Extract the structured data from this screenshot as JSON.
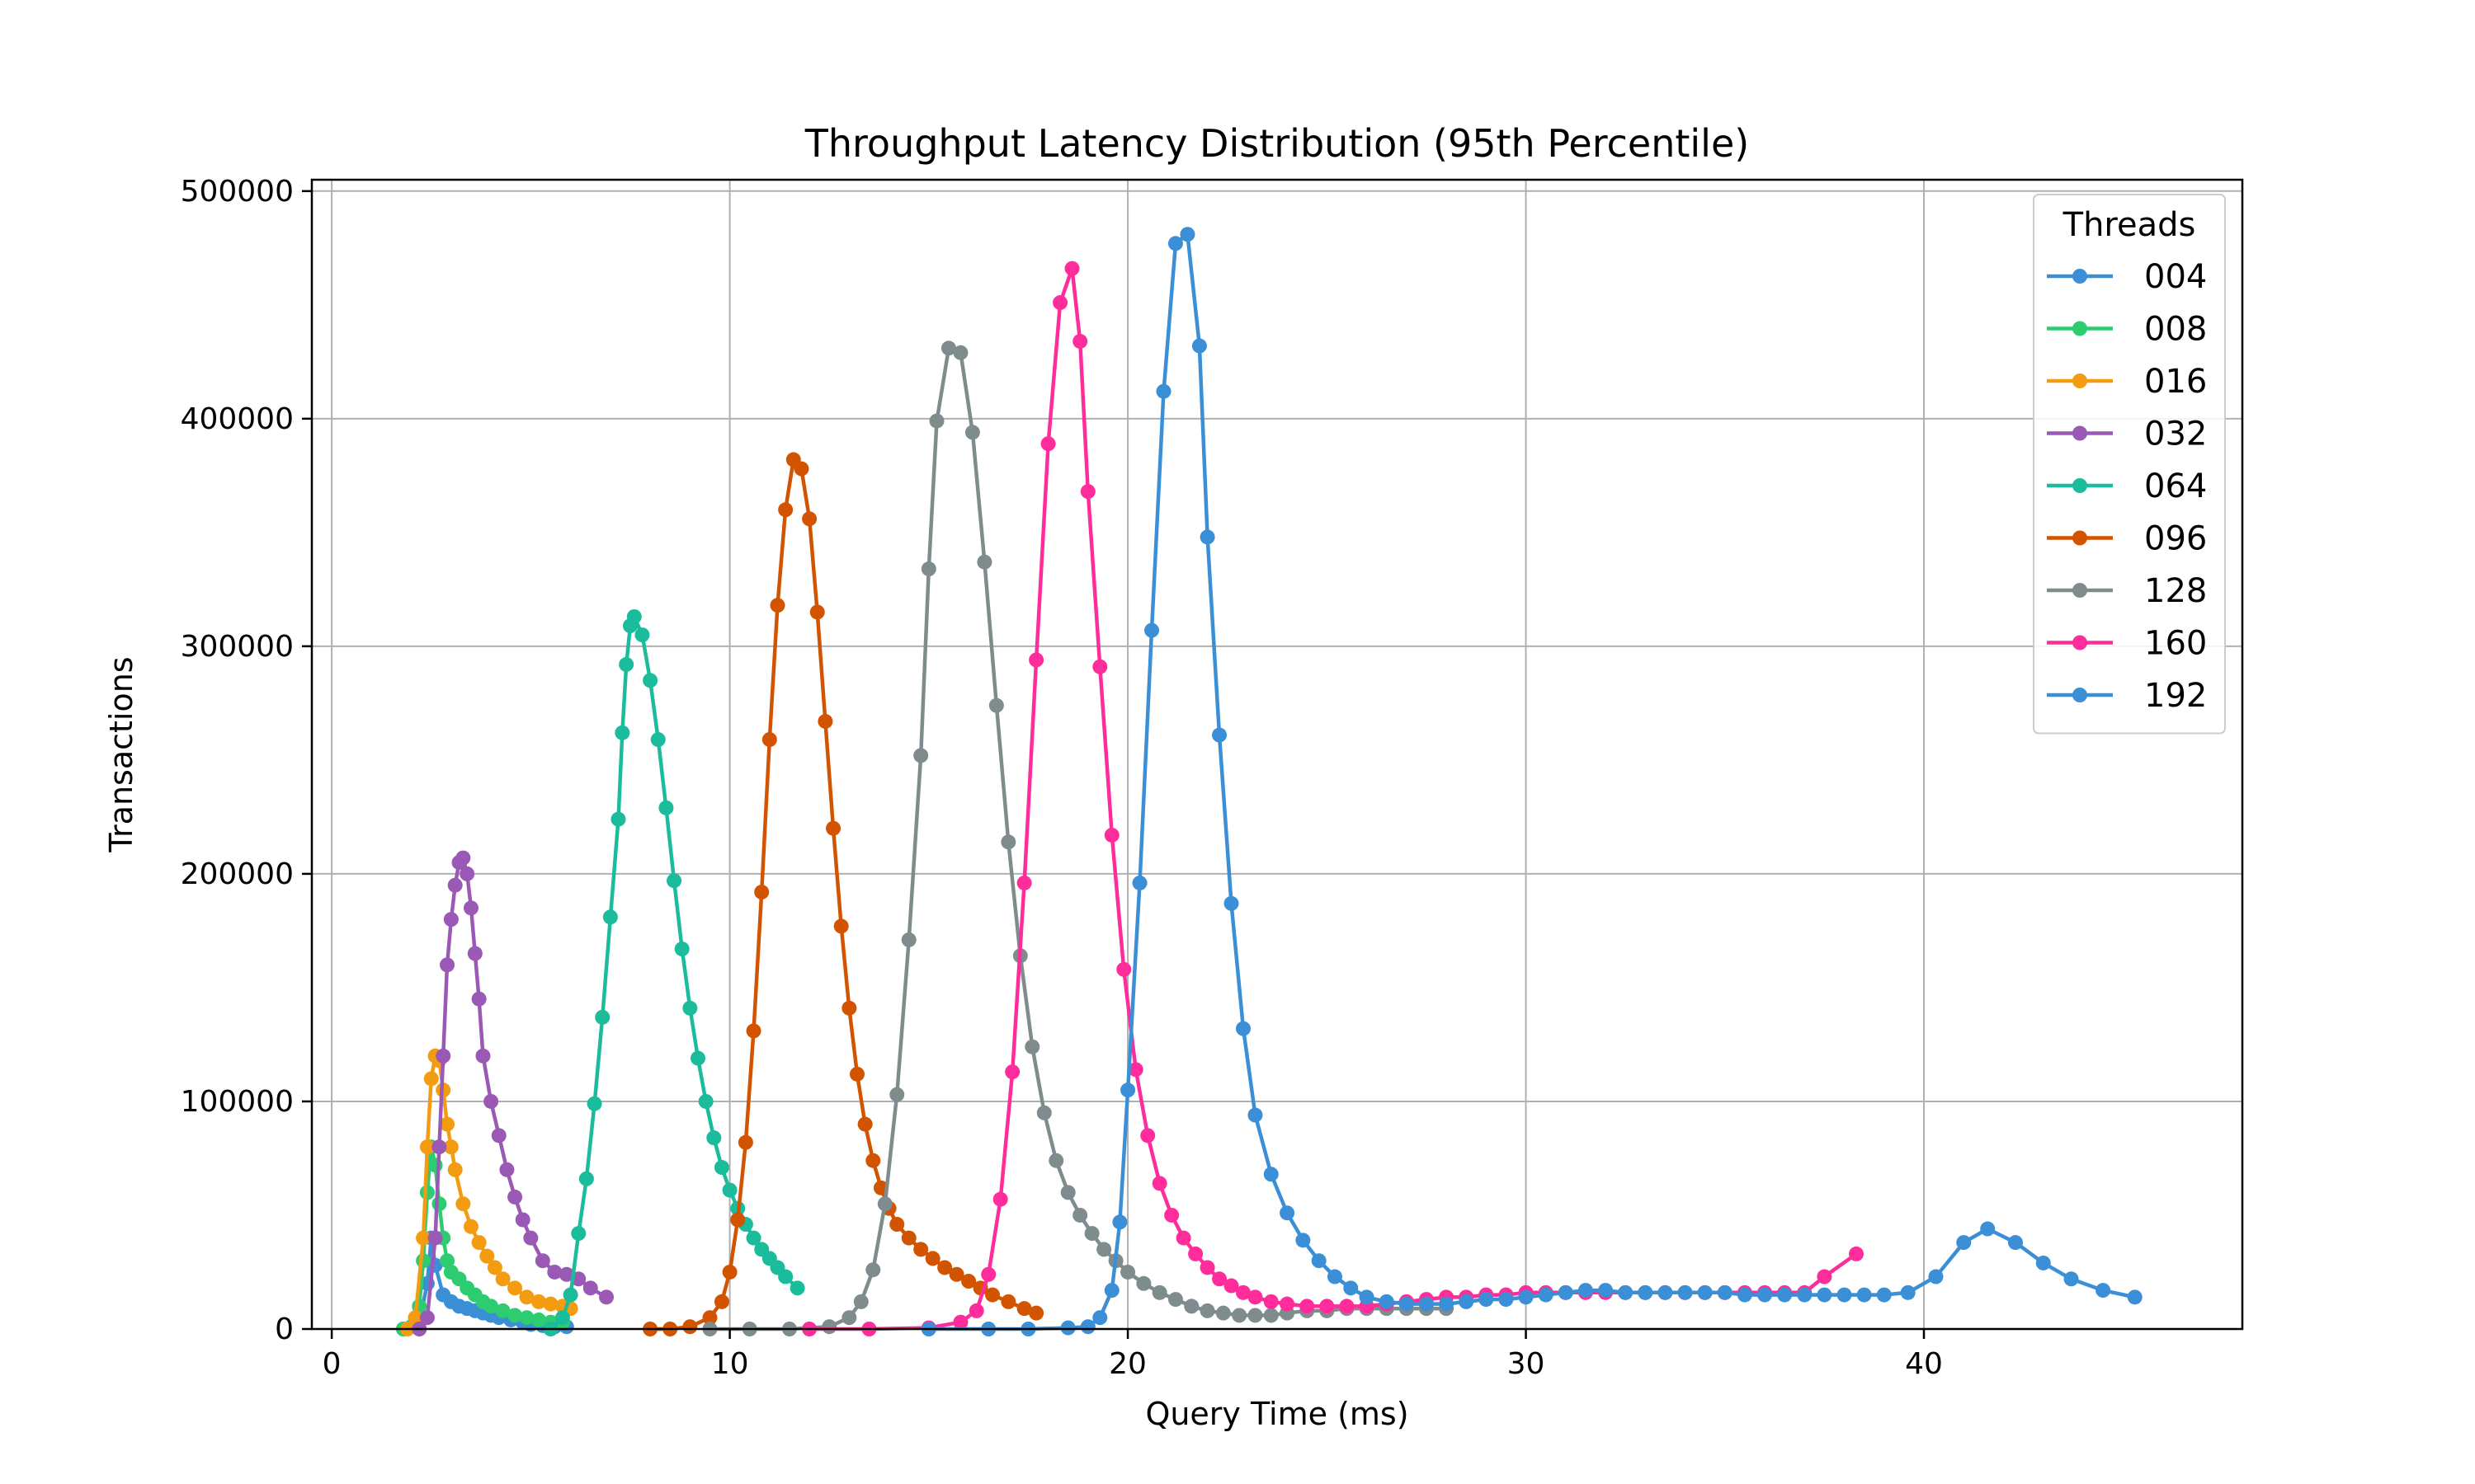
{
  "chart_data": {
    "type": "line",
    "title": "Throughput Latency Distribution (95th Percentile)",
    "xlabel": "Query Time (ms)",
    "ylabel": "Transactions",
    "xlim": [
      -0.5,
      48
    ],
    "ylim": [
      0,
      505000
    ],
    "xticks": [
      0,
      10,
      20,
      30,
      40
    ],
    "yticks": [
      0,
      100000,
      200000,
      300000,
      400000,
      500000
    ],
    "xtick_labels": [
      "0",
      "10",
      "20",
      "30",
      "40"
    ],
    "ytick_labels": [
      "0",
      "100000",
      "200000",
      "300000",
      "400000",
      "500000"
    ],
    "grid": true,
    "legend": {
      "title": "Threads",
      "placement": "top-right"
    },
    "series": [
      {
        "name": "004",
        "color": "#3a8fd6",
        "x": [
          1.8,
          2.0,
          2.2,
          2.4,
          2.5,
          2.6,
          2.8,
          3.0,
          3.2,
          3.4,
          3.6,
          3.8,
          4.0,
          4.2,
          4.5,
          4.8,
          5.0,
          5.3,
          5.6,
          5.9
        ],
        "y": [
          0,
          1000,
          3000,
          20000,
          40000,
          28000,
          15000,
          12000,
          10000,
          9000,
          8000,
          7000,
          6000,
          5000,
          4000,
          3000,
          2000,
          1500,
          1000,
          1000
        ]
      },
      {
        "name": "008",
        "color": "#2ecc71",
        "x": [
          1.8,
          2.0,
          2.2,
          2.3,
          2.4,
          2.5,
          2.6,
          2.7,
          2.8,
          2.9,
          3.0,
          3.2,
          3.4,
          3.6,
          3.8,
          4.0,
          4.3,
          4.6,
          4.9,
          5.2,
          5.5,
          5.8
        ],
        "y": [
          0,
          1000,
          10000,
          30000,
          60000,
          80000,
          72000,
          55000,
          40000,
          30000,
          25000,
          22000,
          18000,
          15000,
          12000,
          10000,
          8000,
          6000,
          5000,
          4000,
          3000,
          3000
        ]
      },
      {
        "name": "016",
        "color": "#f39c12",
        "x": [
          1.9,
          2.1,
          2.3,
          2.4,
          2.5,
          2.6,
          2.7,
          2.8,
          2.9,
          3.0,
          3.1,
          3.3,
          3.5,
          3.7,
          3.9,
          4.1,
          4.3,
          4.6,
          4.9,
          5.2,
          5.5,
          5.8,
          6.0
        ],
        "y": [
          0,
          5000,
          40000,
          80000,
          110000,
          120000,
          118000,
          105000,
          90000,
          80000,
          70000,
          55000,
          45000,
          38000,
          32000,
          27000,
          22000,
          18000,
          14000,
          12000,
          11000,
          10000,
          9000
        ]
      },
      {
        "name": "032",
        "color": "#9b59b6",
        "x": [
          2.2,
          2.4,
          2.6,
          2.7,
          2.8,
          2.9,
          3.0,
          3.1,
          3.2,
          3.3,
          3.4,
          3.5,
          3.6,
          3.7,
          3.8,
          4.0,
          4.2,
          4.4,
          4.6,
          4.8,
          5.0,
          5.3,
          5.6,
          5.9,
          6.2,
          6.5,
          6.9
        ],
        "y": [
          0,
          5000,
          40000,
          80000,
          120000,
          160000,
          180000,
          195000,
          205000,
          207000,
          200000,
          185000,
          165000,
          145000,
          120000,
          100000,
          85000,
          70000,
          58000,
          48000,
          40000,
          30000,
          25000,
          24000,
          22000,
          18000,
          14000
        ]
      },
      {
        "name": "064",
        "color": "#1abc9c",
        "x": [
          5.5,
          5.8,
          6.0,
          6.2,
          6.4,
          6.6,
          6.8,
          7.0,
          7.2,
          7.3,
          7.4,
          7.5,
          7.6,
          7.8,
          8.0,
          8.2,
          8.4,
          8.6,
          8.8,
          9.0,
          9.2,
          9.4,
          9.6,
          9.8,
          10.0,
          10.2,
          10.4,
          10.6,
          10.8,
          11.0,
          11.2,
          11.4,
          11.7
        ],
        "y": [
          0,
          5000,
          15000,
          42000,
          66000,
          99000,
          137000,
          181000,
          224000,
          262000,
          292000,
          309000,
          313000,
          305000,
          285000,
          259000,
          229000,
          197000,
          167000,
          141000,
          119000,
          100000,
          84000,
          71000,
          61000,
          53000,
          46000,
          40000,
          35000,
          31000,
          27000,
          23000,
          18000
        ]
      },
      {
        "name": "096",
        "color": "#d35400",
        "x": [
          8.0,
          8.5,
          9.0,
          9.5,
          9.8,
          10.0,
          10.2,
          10.4,
          10.6,
          10.8,
          11.0,
          11.2,
          11.4,
          11.6,
          11.8,
          12.0,
          12.2,
          12.4,
          12.6,
          12.8,
          13.0,
          13.2,
          13.4,
          13.6,
          13.8,
          14.0,
          14.2,
          14.5,
          14.8,
          15.1,
          15.4,
          15.7,
          16.0,
          16.3,
          16.6,
          17.0,
          17.4,
          17.7
        ],
        "y": [
          0,
          0,
          1000,
          5000,
          12000,
          25000,
          48000,
          82000,
          131000,
          192000,
          259000,
          318000,
          360000,
          382000,
          378000,
          356000,
          315000,
          267000,
          220000,
          177000,
          141000,
          112000,
          90000,
          74000,
          62000,
          53000,
          46000,
          40000,
          35000,
          31000,
          27000,
          24000,
          21000,
          18000,
          15000,
          12000,
          9000,
          7000
        ]
      },
      {
        "name": "128",
        "color": "#7f8c8d",
        "x": [
          9.5,
          10.5,
          11.5,
          12.5,
          13.0,
          13.3,
          13.6,
          13.9,
          14.2,
          14.5,
          14.8,
          15.0,
          15.2,
          15.5,
          15.8,
          16.1,
          16.4,
          16.7,
          17.0,
          17.3,
          17.6,
          17.9,
          18.2,
          18.5,
          18.8,
          19.1,
          19.4,
          19.7,
          20.0,
          20.4,
          20.8,
          21.2,
          21.6,
          22.0,
          22.4,
          22.8,
          23.2,
          23.6,
          24.0,
          24.5,
          25.0,
          25.5,
          26.0,
          26.5,
          27.0,
          27.5,
          28.0
        ],
        "y": [
          0,
          0,
          0,
          1000,
          5000,
          12000,
          26000,
          55000,
          103000,
          171000,
          252000,
          334000,
          399000,
          431000,
          429000,
          394000,
          337000,
          274000,
          214000,
          164000,
          124000,
          95000,
          74000,
          60000,
          50000,
          42000,
          35000,
          30000,
          25000,
          20000,
          16000,
          13000,
          10000,
          8000,
          7000,
          6000,
          6000,
          6000,
          7000,
          8000,
          8000,
          9000,
          9000,
          9000,
          9000,
          9000,
          9000
        ]
      },
      {
        "name": "160",
        "color": "#ff2d9b",
        "x": [
          12.0,
          13.5,
          15.0,
          15.8,
          16.2,
          16.5,
          16.8,
          17.1,
          17.4,
          17.7,
          18.0,
          18.3,
          18.6,
          18.8,
          19.0,
          19.3,
          19.6,
          19.9,
          20.2,
          20.5,
          20.8,
          21.1,
          21.4,
          21.7,
          22.0,
          22.3,
          22.6,
          22.9,
          23.2,
          23.6,
          24.0,
          24.5,
          25.0,
          25.5,
          26.0,
          26.5,
          27.0,
          27.5,
          28.0,
          28.5,
          29.0,
          29.5,
          30.0,
          30.5,
          31.0,
          31.5,
          32.0,
          32.5,
          33.0,
          33.5,
          34.0,
          34.5,
          35.0,
          35.5,
          36.0,
          36.5,
          37.0,
          37.5,
          38.3
        ],
        "y": [
          0,
          0,
          500,
          3000,
          8000,
          24000,
          57000,
          113000,
          196000,
          294000,
          389000,
          451000,
          466000,
          434000,
          368000,
          291000,
          217000,
          158000,
          114000,
          85000,
          64000,
          50000,
          40000,
          33000,
          27000,
          22000,
          19000,
          16000,
          14000,
          12000,
          11000,
          10000,
          10000,
          10000,
          10000,
          11000,
          12000,
          13000,
          14000,
          14000,
          15000,
          15000,
          16000,
          16000,
          16000,
          16000,
          16000,
          16000,
          16000,
          16000,
          16000,
          16000,
          16000,
          16000,
          16000,
          16000,
          16000,
          23000,
          33000
        ]
      },
      {
        "name": "192",
        "color": "#3a8fd6",
        "x": [
          15.0,
          16.5,
          17.5,
          18.5,
          19.0,
          19.3,
          19.6,
          19.8,
          20.0,
          20.3,
          20.6,
          20.9,
          21.2,
          21.5,
          21.8,
          22.0,
          22.3,
          22.6,
          22.9,
          23.2,
          23.6,
          24.0,
          24.4,
          24.8,
          25.2,
          25.6,
          26.0,
          26.5,
          27.0,
          27.5,
          28.0,
          28.5,
          29.0,
          29.5,
          30.0,
          30.5,
          31.0,
          31.5,
          32.0,
          32.5,
          33.0,
          33.5,
          34.0,
          34.5,
          35.0,
          35.5,
          36.0,
          36.5,
          37.0,
          37.5,
          38.0,
          38.5,
          39.0,
          39.6,
          40.3,
          41.0,
          41.6,
          42.3,
          43.0,
          43.7,
          44.5,
          45.3
        ],
        "y": [
          0,
          0,
          0,
          500,
          1000,
          5000,
          17000,
          47000,
          105000,
          196000,
          307000,
          412000,
          477000,
          481000,
          432000,
          348000,
          261000,
          187000,
          132000,
          94000,
          68000,
          51000,
          39000,
          30000,
          23000,
          18000,
          14000,
          12000,
          11000,
          11000,
          11000,
          12000,
          13000,
          13000,
          14000,
          15000,
          16000,
          17000,
          17000,
          16000,
          16000,
          16000,
          16000,
          16000,
          16000,
          15000,
          15000,
          15000,
          15000,
          15000,
          15000,
          15000,
          15000,
          16000,
          23000,
          38000,
          44000,
          38000,
          29000,
          22000,
          17000,
          14000
        ]
      }
    ]
  }
}
